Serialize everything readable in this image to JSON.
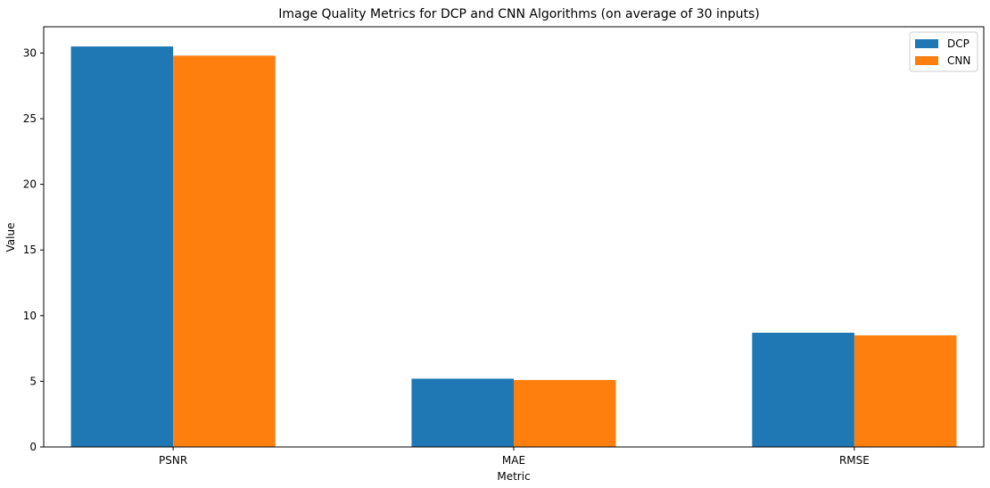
{
  "chart_data": {
    "type": "bar",
    "title": "Image Quality Metrics for DCP and CNN Algorithms (on average of 30 inputs)",
    "xlabel": "Metric",
    "ylabel": "Value",
    "categories": [
      "PSNR",
      "MAE",
      "RMSE"
    ],
    "series": [
      {
        "name": "DCP",
        "values": [
          30.5,
          5.2,
          8.7
        ]
      },
      {
        "name": "CNN",
        "values": [
          29.8,
          5.1,
          8.5
        ]
      }
    ],
    "ylim": [
      0,
      32
    ],
    "yticks": [
      0,
      5,
      10,
      15,
      20,
      25,
      30
    ],
    "grid": false,
    "legend": "top-right",
    "colors": {
      "DCP": "#1f77b4",
      "CNN": "#ff7f0e"
    }
  }
}
